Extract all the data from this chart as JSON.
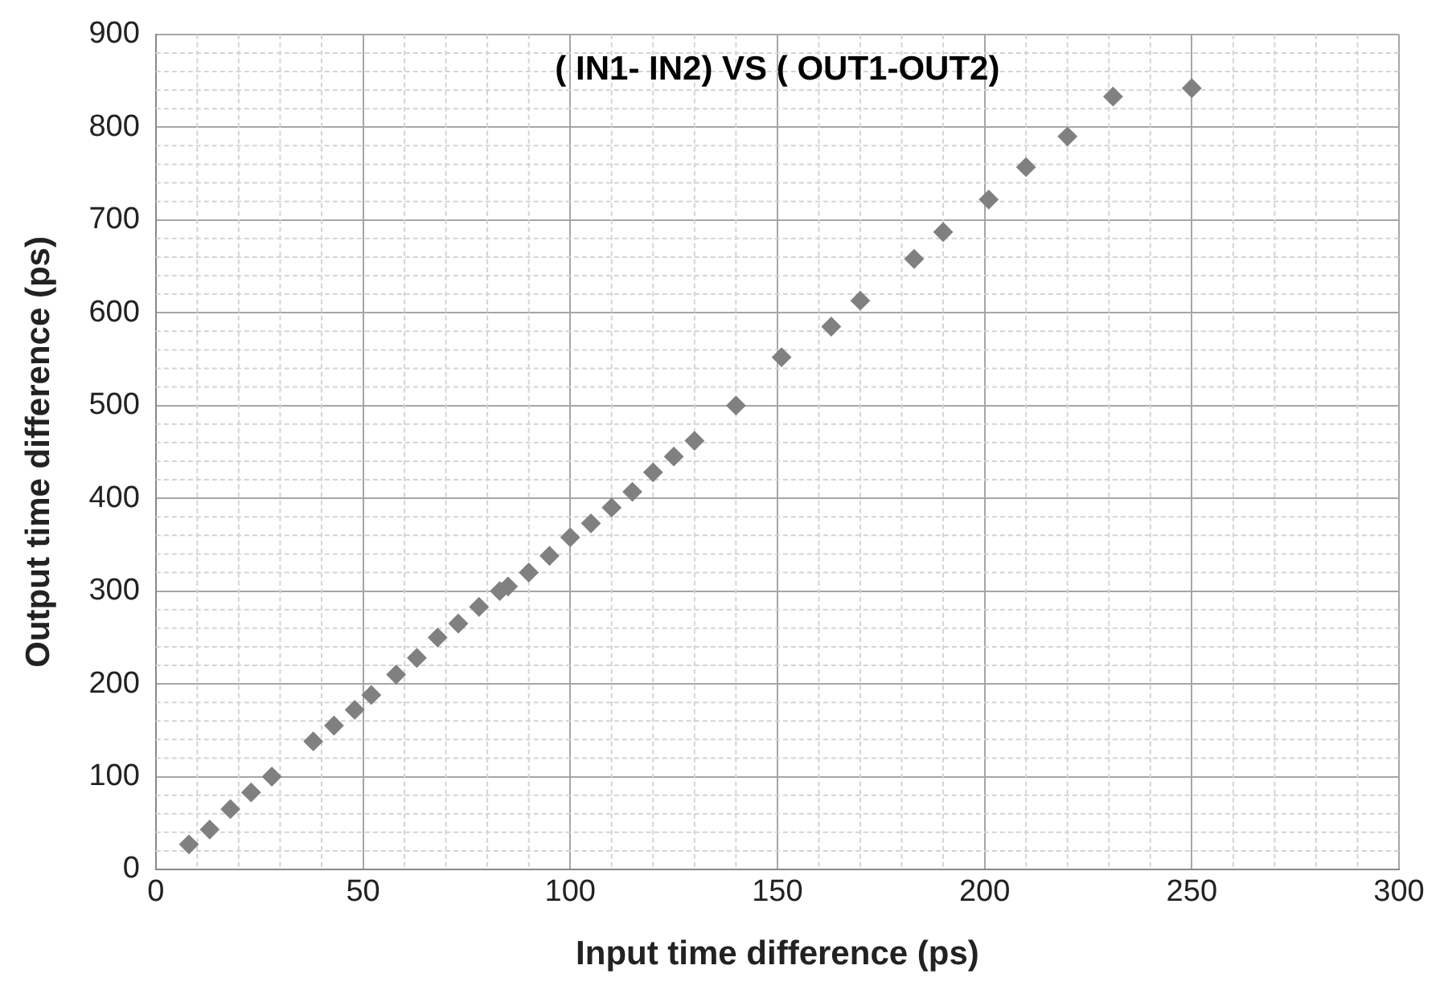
{
  "chart_data": {
    "type": "scatter",
    "title": "( IN1- IN2) VS ( OUT1-OUT2)",
    "xlabel": "Input time difference (ps)",
    "ylabel": "Output time difference (ps)",
    "x": [
      8,
      13,
      18,
      23,
      28,
      38,
      43,
      48,
      52,
      58,
      63,
      68,
      73,
      78,
      83,
      85,
      90,
      95,
      100,
      105,
      110,
      115,
      120,
      125,
      130,
      140,
      151,
      163,
      170,
      183,
      190,
      201,
      210,
      220,
      231,
      250
    ],
    "series": [
      {
        "color": "#808080",
        "values": [
          27,
          43,
          65,
          83,
          100,
          138,
          155,
          172,
          188,
          210,
          228,
          250,
          265,
          283,
          300,
          305,
          320,
          338,
          358,
          373,
          390,
          407,
          428,
          445,
          462,
          500,
          552,
          585,
          613,
          658,
          687,
          722,
          757,
          790,
          833,
          842
        ]
      }
    ],
    "xlim": [
      0,
      300
    ],
    "xticks": [
      0,
      50,
      100,
      150,
      200,
      250,
      300
    ],
    "ylim": [
      0,
      900
    ],
    "yticks": [
      0,
      100,
      200,
      300,
      400,
      500,
      600,
      700,
      800,
      900
    ],
    "grid": true,
    "legend": false,
    "marker": "diamond"
  }
}
